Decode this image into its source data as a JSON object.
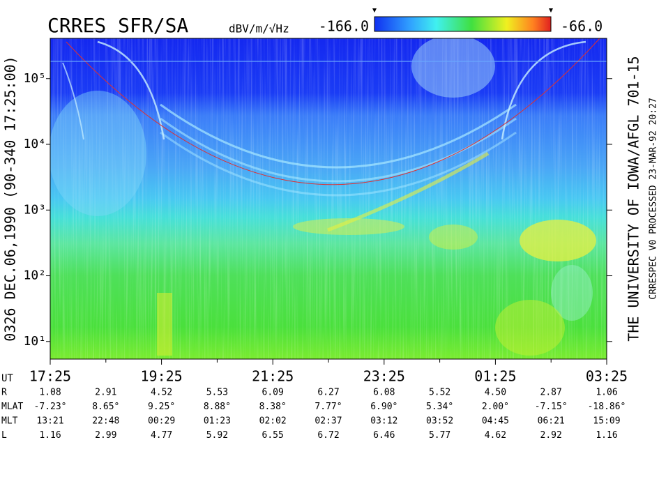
{
  "chart_data": {
    "type": "spectrogram",
    "title": "CRRES SFR/SA",
    "left_label": "0326   DEC.06,1990   (90-340 17:25:00)",
    "right_label": "THE UNIVERSITY OF IOWA/AFGL 701-15",
    "footer_label": "CRRESPEC V0   PROCESSED 23-MAR-92  20:27",
    "colorbar": {
      "label": "dBV/m/√Hz",
      "zlim": [
        -166,
        -66
      ],
      "ticks": [
        {
          "value": -166,
          "label": "-166.0"
        },
        {
          "value": -66,
          "label": "-66.0"
        }
      ]
    },
    "log_y": true,
    "ylim": [
      5.4,
      410000
    ],
    "yticks": [
      {
        "value": 10,
        "label": "10¹"
      },
      {
        "value": 100,
        "label": "10²"
      },
      {
        "value": 1000,
        "label": "10³"
      },
      {
        "value": 10000,
        "label": "10⁴"
      },
      {
        "value": 100000,
        "label": "10⁵"
      }
    ],
    "x_label": "UT",
    "categories": [
      "17:25",
      null,
      "19:25",
      null,
      "21:25",
      null,
      "23:25",
      null,
      "01:25",
      null,
      "03:25"
    ],
    "ephemeris": [
      {
        "name": "R",
        "values": [
          "1.08",
          "2.91",
          "4.52",
          "5.53",
          "6.09",
          "6.27",
          "6.08",
          "5.52",
          "4.50",
          "2.87",
          "1.06"
        ]
      },
      {
        "name": "MLAT",
        "values": [
          "-7.23°",
          "8.65°",
          "9.25°",
          "8.88°",
          "8.38°",
          "7.77°",
          "6.90°",
          "5.34°",
          "2.00°",
          "-7.15°",
          "-18.86°"
        ]
      },
      {
        "name": "MLT",
        "values": [
          "13:21",
          "22:48",
          "00:29",
          "01:23",
          "02:02",
          "02:37",
          "03:12",
          "03:52",
          "04:45",
          "06:21",
          "15:09"
        ]
      },
      {
        "name": "L",
        "values": [
          "1.16",
          "2.99",
          "4.77",
          "5.92",
          "6.55",
          "6.72",
          "6.46",
          "5.77",
          "4.62",
          "2.92",
          "1.16"
        ]
      }
    ]
  }
}
